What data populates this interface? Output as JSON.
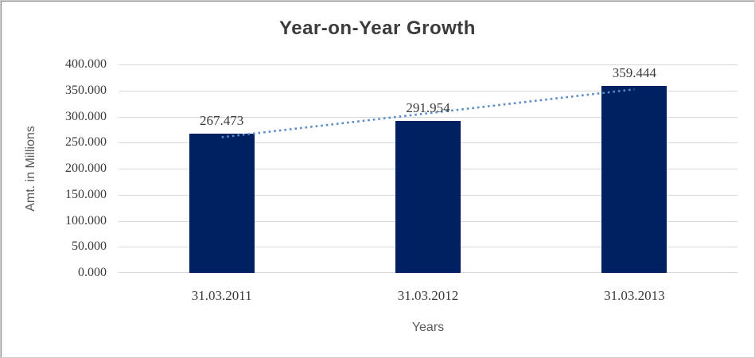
{
  "chart_data": {
    "type": "bar",
    "title": "Year-on-Year Growth",
    "categories": [
      "31.03.2011",
      "31.03.2012",
      "31.03.2013"
    ],
    "values": [
      267.473,
      291.954,
      359.444
    ],
    "data_labels": [
      "267.473",
      "291.954",
      "359.444"
    ],
    "xlabel": "Years",
    "ylabel": "Amt. in Millions",
    "ylim": [
      0,
      400
    ],
    "yticks": [
      400,
      350,
      300,
      250,
      200,
      150,
      100,
      50,
      0
    ],
    "ytick_labels": [
      "400.000",
      "350.000",
      "300.000",
      "250.000",
      "200.000",
      "150.000",
      "100.000",
      "50.000",
      "0.000"
    ],
    "grid": true,
    "legend": false,
    "colors": {
      "bar": "#002161",
      "gridline": "#d9d9d9",
      "title": "#3b3b3b",
      "tick_label": "#3a3a3a",
      "axis_title": "#595959",
      "trendline": "#5a8cc8"
    },
    "trendline": {
      "type": "linear",
      "style": "dotted",
      "start_value": 260.305,
      "end_value": 352.276,
      "start_category_index": 0,
      "end_category_index": 2
    }
  }
}
